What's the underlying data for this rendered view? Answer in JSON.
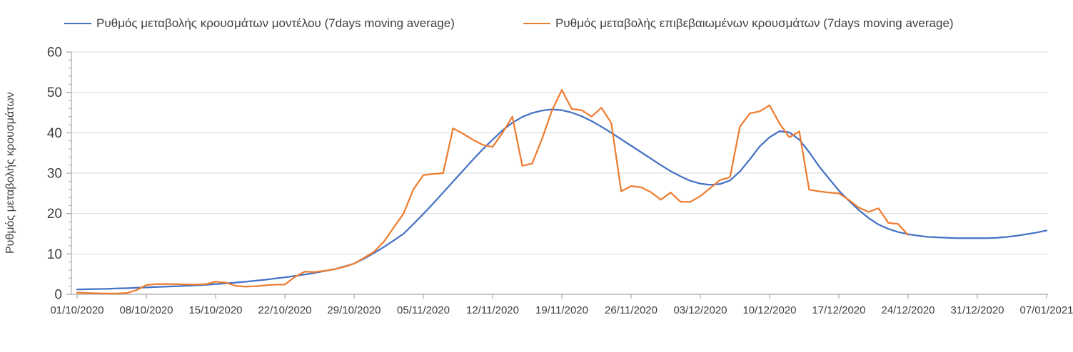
{
  "chart_data": {
    "type": "line",
    "title": "",
    "xlabel": "",
    "ylabel": "Ρυθμός μεταβολής κρουσμάτων",
    "ylim": [
      0,
      60
    ],
    "y_tick_step": 10,
    "y_minor_tick_step": 2,
    "grid": "horizontal",
    "legend_position": "top",
    "x_unit": "daily points, one per date",
    "x_tick_days": [
      0,
      7,
      14,
      21,
      28,
      35,
      42,
      49,
      56,
      63,
      70,
      77,
      84,
      91,
      98
    ],
    "x_tick_labels": [
      "01/10/2020",
      "08/10/2020",
      "15/10/2020",
      "22/10/2020",
      "29/10/2020",
      "05/11/2020",
      "12/11/2020",
      "19/11/2020",
      "26/11/2020",
      "03/12/2020",
      "10/12/2020",
      "17/12/2020",
      "24/12/2020",
      "31/12/2020",
      "07/01/2021"
    ],
    "axis_color": "#a6a6a6",
    "gridline_color": "#d9d9d9",
    "series": [
      {
        "name": "Ρυθμός μεταβολής κρουσμάτων μοντέλου (7days moving average)",
        "color": "#4472C4",
        "start_day": 0,
        "values": [
          1.2,
          1.25,
          1.3,
          1.35,
          1.45,
          1.5,
          1.6,
          1.7,
          1.8,
          1.9,
          2.0,
          2.1,
          2.2,
          2.35,
          2.5,
          2.7,
          2.9,
          3.1,
          3.35,
          3.6,
          3.9,
          4.2,
          4.55,
          4.9,
          5.3,
          5.75,
          6.2,
          6.9,
          7.6,
          8.8,
          10.2,
          11.7,
          13.3,
          15.0,
          17.4,
          19.9,
          22.5,
          25.2,
          27.9,
          30.6,
          33.3,
          35.9,
          38.3,
          40.6,
          42.5,
          43.9,
          44.9,
          45.5,
          45.8,
          45.6,
          45.0,
          44.1,
          42.9,
          41.5,
          40.0,
          38.4,
          36.8,
          35.2,
          33.6,
          32.0,
          30.5,
          29.2,
          28.1,
          27.4,
          27.1,
          27.3,
          28.2,
          30.4,
          33.4,
          36.6,
          38.9,
          40.4,
          40.1,
          38.3,
          35.2,
          31.7,
          28.7,
          25.7,
          23.2,
          20.9,
          18.9,
          17.3,
          16.2,
          15.4,
          14.9,
          14.5,
          14.2,
          14.1,
          14.0,
          13.9,
          13.9,
          13.9,
          13.9,
          14.0,
          14.2,
          14.5,
          14.9,
          15.3,
          15.8
        ]
      },
      {
        "name": "Ρυθμός μεταβολής επιβεβαιωμένων κρουσμάτων (7days moving average)",
        "color": "#ED7D31",
        "start_day": 0,
        "values": [
          0.4,
          0.3,
          0.25,
          0.2,
          0.2,
          0.3,
          1.0,
          2.3,
          2.5,
          2.55,
          2.5,
          2.45,
          2.4,
          2.5,
          3.1,
          2.9,
          2.1,
          1.9,
          2.0,
          2.2,
          2.4,
          2.4,
          4.3,
          5.6,
          5.5,
          5.8,
          6.2,
          6.8,
          7.6,
          9.0,
          10.5,
          13.0,
          16.5,
          20.0,
          26.0,
          29.5,
          29.8,
          30.0,
          41.1,
          39.8,
          38.3,
          37.0,
          36.5,
          40.0,
          44.0,
          31.8,
          32.4,
          38.5,
          45.5,
          50.6,
          45.9,
          45.6,
          44.0,
          46.2,
          42.4,
          25.5,
          26.8,
          26.5,
          25.3,
          23.4,
          25.2,
          22.9,
          22.9,
          24.3,
          26.3,
          28.3,
          29.0,
          41.5,
          44.8,
          45.3,
          46.8,
          42.3,
          38.9,
          40.3,
          25.9,
          25.5,
          25.2,
          25.0,
          23.4,
          21.5,
          20.4,
          21.3,
          17.7,
          17.4,
          14.7
        ]
      }
    ],
    "y_ticks": [
      0,
      10,
      20,
      30,
      40,
      50,
      60
    ]
  },
  "legend": {
    "items": [
      {
        "label": "Ρυθμός μεταβολής κρουσμάτων μοντέλου (7days moving average)"
      },
      {
        "label": "Ρυθμός μεταβολής επιβεβαιωμένων κρουσμάτων (7days moving average)"
      }
    ]
  }
}
